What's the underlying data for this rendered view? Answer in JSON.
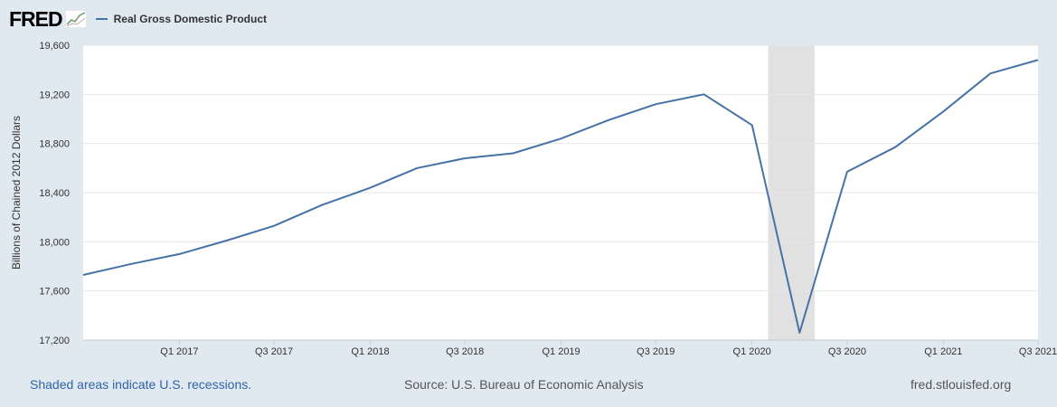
{
  "header": {
    "logo_text": "FRED",
    "logo_icon": "sparkline-chart-icon"
  },
  "chart_data": {
    "type": "line",
    "title": "",
    "xlabel": "",
    "ylabel": "Billions of Chained 2012 Dollars",
    "ylim": [
      17200,
      19600
    ],
    "yticks": [
      17200,
      17600,
      18000,
      18400,
      18800,
      19200,
      19600
    ],
    "ytick_labels": [
      "17,200",
      "17,600",
      "18,000",
      "18,400",
      "18,800",
      "19,200",
      "19,600"
    ],
    "x": [
      "2016-07-01",
      "2016-10-01",
      "2017-01-01",
      "2017-04-01",
      "2017-07-01",
      "2017-10-01",
      "2018-01-01",
      "2018-04-01",
      "2018-07-01",
      "2018-10-01",
      "2019-01-01",
      "2019-04-01",
      "2019-07-01",
      "2019-10-01",
      "2020-01-01",
      "2020-04-01",
      "2020-07-01",
      "2020-10-01",
      "2021-01-01",
      "2021-04-01",
      "2021-07-01"
    ],
    "xtick_labels": [
      "Q1 2017",
      "Q3 2017",
      "Q1 2018",
      "Q3 2018",
      "Q1 2019",
      "Q3 2019",
      "Q1 2020",
      "Q3 2020",
      "Q1 2021",
      "Q3 2021"
    ],
    "xtick_positions": [
      "2017-01-01",
      "2017-07-01",
      "2018-01-01",
      "2018-07-01",
      "2019-01-01",
      "2019-07-01",
      "2020-01-01",
      "2020-07-01",
      "2021-01-01",
      "2021-07-01"
    ],
    "series": [
      {
        "name": "Real Gross Domestic Product",
        "color": "#4572a7",
        "values": [
          17730,
          17820,
          17900,
          18010,
          18130,
          18300,
          18440,
          18600,
          18680,
          18720,
          18840,
          18990,
          19120,
          19200,
          18950,
          17260,
          18570,
          18770,
          19060,
          19370,
          19480
        ]
      }
    ],
    "recession_shading": {
      "start": "2020-02-01",
      "end": "2020-04-30",
      "color": "#e1e1e1"
    },
    "grid": true,
    "legend_position": "top-left"
  },
  "footer": {
    "recession_note": "Shaded areas indicate U.S. recessions.",
    "source": "Source: U.S. Bureau of Economic Analysis",
    "site": "fred.stlouisfed.org"
  }
}
